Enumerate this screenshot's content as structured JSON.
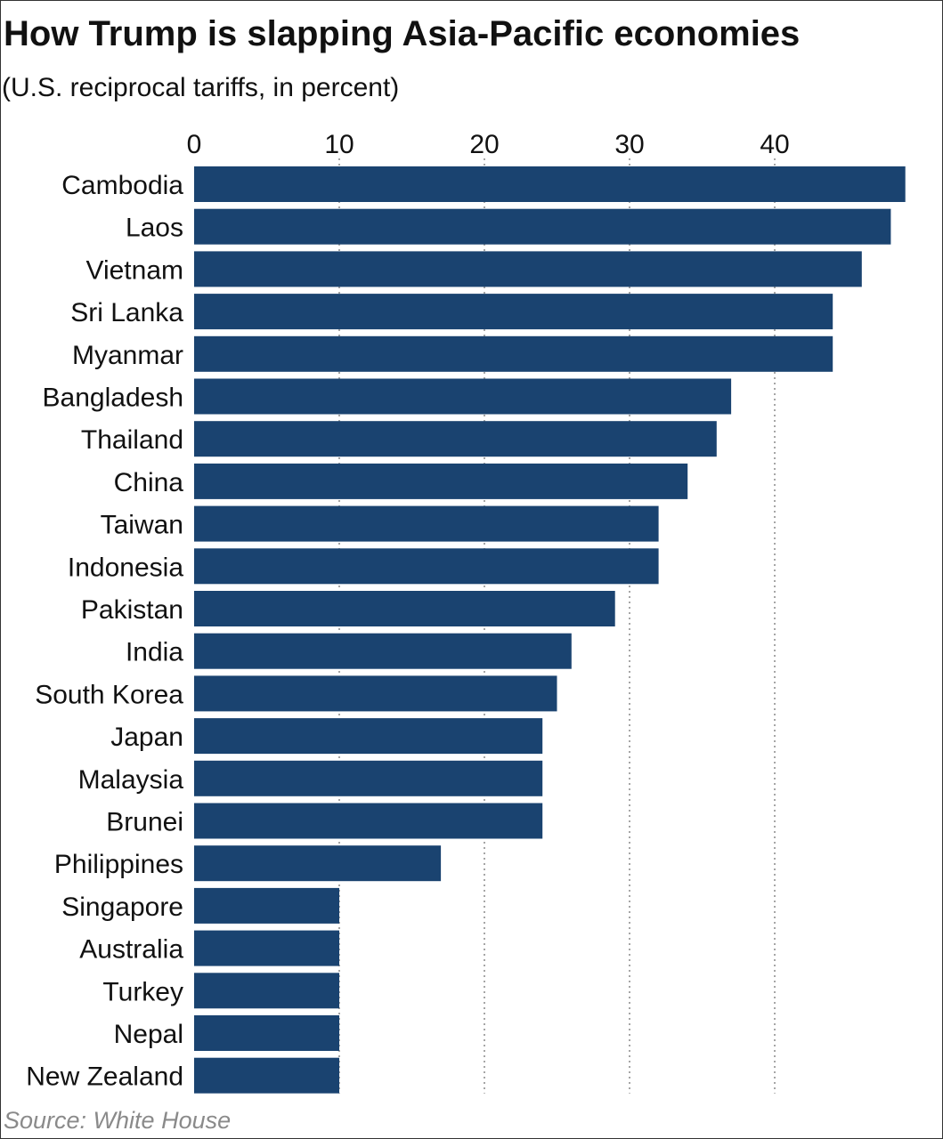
{
  "chart_data": {
    "type": "bar",
    "orientation": "horizontal",
    "title": "How Trump is slapping Asia-Pacific economies",
    "subtitle": "(U.S. reciprocal tariffs, in percent)",
    "source": "Source: White House",
    "xlabel": "",
    "ylabel": "",
    "xlim": [
      0,
      50
    ],
    "xticks": [
      0,
      10,
      20,
      30,
      40
    ],
    "grid": "vertical dotted",
    "bar_color": "#1a4370",
    "categories": [
      "Cambodia",
      "Laos",
      "Vietnam",
      "Sri Lanka",
      "Myanmar",
      "Bangladesh",
      "Thailand",
      "China",
      "Taiwan",
      "Indonesia",
      "Pakistan",
      "India",
      "South Korea",
      "Japan",
      "Malaysia",
      "Brunei",
      "Philippines",
      "Singapore",
      "Australia",
      "Turkey",
      "Nepal",
      "New Zealand"
    ],
    "values": [
      49,
      48,
      46,
      44,
      44,
      37,
      36,
      34,
      32,
      32,
      29,
      26,
      25,
      24,
      24,
      24,
      17,
      10,
      10,
      10,
      10,
      10
    ]
  }
}
